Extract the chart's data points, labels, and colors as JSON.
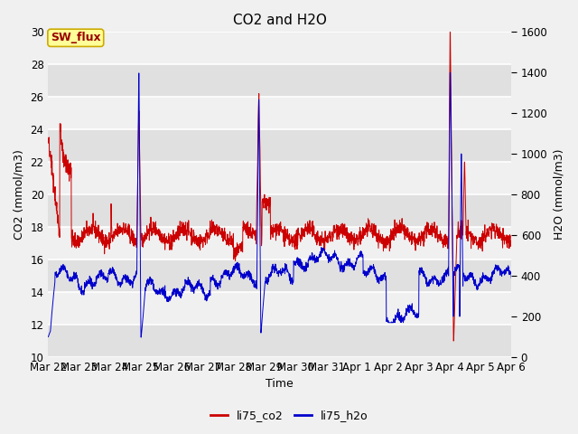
{
  "title": "CO2 and H2O",
  "xlabel": "Time",
  "ylabel_left": "CO2 (mmol/m3)",
  "ylabel_right": "H2O (mmol/m3)",
  "ylim_left": [
    10,
    30
  ],
  "ylim_right": [
    0,
    1600
  ],
  "fig_bg": "#f0f0f0",
  "plot_bg_light": "#f0f0f0",
  "plot_bg_dark": "#e0e0e0",
  "co2_color": "#cc0000",
  "h2o_color": "#0000cc",
  "legend_label_co2": "li75_co2",
  "legend_label_h2o": "li75_h2o",
  "sw_flux_label": "SW_flux",
  "sw_flux_bg": "#ffff99",
  "sw_flux_border": "#ccaa00",
  "xtick_labels": [
    "Mar 22",
    "Mar 23",
    "Mar 24",
    "Mar 25",
    "Mar 26",
    "Mar 27",
    "Mar 28",
    "Mar 29",
    "Mar 30",
    "Mar 31",
    "Apr 1",
    "Apr 2",
    "Apr 3",
    "Apr 4",
    "Apr 5",
    "Apr 6"
  ],
  "yticks_left": [
    10,
    12,
    14,
    16,
    18,
    20,
    22,
    24,
    26,
    28,
    30
  ],
  "yticks_right": [
    0,
    200,
    400,
    600,
    800,
    1000,
    1200,
    1400,
    1600
  ]
}
